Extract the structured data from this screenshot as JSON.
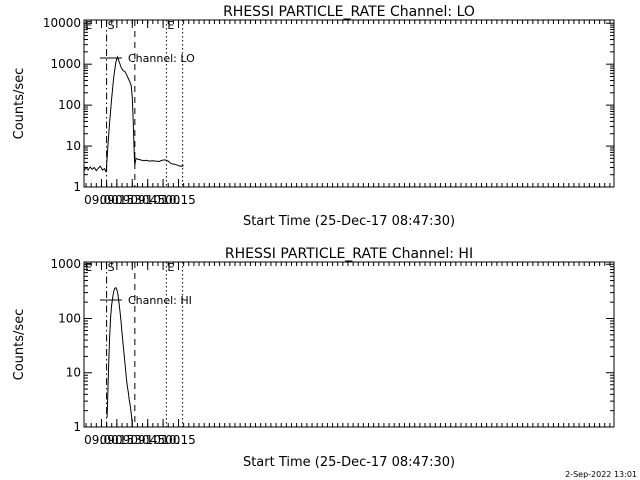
{
  "footer": {
    "timestamp": "2-Sep-2022 13:01"
  },
  "chart_data": [
    {
      "type": "line",
      "title": "RHESSI PARTICLE_RATE Channel: LO",
      "xlabel": "Start Time (25-Dec-17 08:47:30)",
      "ylabel": "Counts/sec",
      "yscale": "log",
      "xlim_minutes": [
        523.0,
        1039.0
      ],
      "ylim": [
        1,
        12000
      ],
      "x_ticks": [
        {
          "m": 540,
          "label": "09:00"
        },
        {
          "m": 555,
          "label": "09:15"
        },
        {
          "m": 570,
          "label": "09:30"
        },
        {
          "m": 585,
          "label": "09:45"
        },
        {
          "m": 600,
          "label": "10:00"
        },
        {
          "m": 615,
          "label": "10:15"
        }
      ],
      "y_ticks": [
        {
          "v": 1,
          "label": "1"
        },
        {
          "v": 10,
          "label": "10"
        },
        {
          "v": 100,
          "label": "100"
        },
        {
          "v": 1000,
          "label": "1000"
        },
        {
          "v": 10000,
          "label": "10000"
        }
      ],
      "markers": [
        {
          "label": "E",
          "m": 523.3,
          "style": "none"
        },
        {
          "label": "S",
          "m": 545.0,
          "style": "dashdot"
        },
        {
          "label": "",
          "m": 572.5,
          "style": "dashed"
        },
        {
          "label": "E",
          "m": 603.2,
          "style": "dotted"
        },
        {
          "label": "",
          "m": 619.0,
          "style": "dotted"
        }
      ],
      "legend": {
        "label": "Channel: LO",
        "position": "top-left"
      },
      "series": [
        {
          "name": "Channel: LO",
          "x": [
            523.0,
            525,
            527,
            529,
            531,
            533,
            535,
            537,
            539,
            541,
            543,
            544.5,
            545.5,
            546.5,
            548,
            550,
            552,
            554,
            555.5,
            557,
            559,
            561,
            563,
            565,
            567,
            569,
            570,
            571,
            571.8,
            572.2,
            572.6,
            573.5,
            575,
            578,
            581,
            584,
            587,
            590,
            593,
            596,
            599,
            602,
            605,
            608,
            611,
            614,
            617,
            620
          ],
          "y": [
            2.5,
            3.0,
            2.6,
            3.1,
            2.7,
            3.0,
            2.5,
            2.9,
            3.2,
            2.6,
            2.8,
            2.3,
            5.0,
            12,
            40,
            150,
            500,
            1100,
            1500,
            1200,
            850,
            700,
            650,
            520,
            400,
            300,
            150,
            35,
            8,
            4.5,
            3.5,
            5.0,
            4.8,
            4.6,
            4.4,
            4.5,
            4.3,
            4.4,
            4.3,
            4.2,
            4.5,
            4.6,
            4.3,
            3.7,
            3.6,
            3.4,
            3.2,
            3.3
          ]
        }
      ]
    },
    {
      "type": "line",
      "title": "RHESSI PARTICLE_RATE Channel: HI",
      "xlabel": "Start Time (25-Dec-17 08:47:30)",
      "ylabel": "Counts/sec",
      "yscale": "log",
      "xlim_minutes": [
        523.0,
        1039.0
      ],
      "ylim": [
        1,
        1100
      ],
      "x_ticks": [
        {
          "m": 540,
          "label": "09:00"
        },
        {
          "m": 555,
          "label": "09:15"
        },
        {
          "m": 570,
          "label": "09:30"
        },
        {
          "m": 585,
          "label": "09:45"
        },
        {
          "m": 600,
          "label": "10:00"
        },
        {
          "m": 615,
          "label": "10:15"
        }
      ],
      "y_ticks": [
        {
          "v": 1,
          "label": "1"
        },
        {
          "v": 10,
          "label": "10"
        },
        {
          "v": 100,
          "label": "100"
        },
        {
          "v": 1000,
          "label": "1000"
        }
      ],
      "markers": [
        {
          "label": "E",
          "m": 523.3,
          "style": "none"
        },
        {
          "label": "S",
          "m": 545.0,
          "style": "dashdot"
        },
        {
          "label": "",
          "m": 572.5,
          "style": "dashed"
        },
        {
          "label": "E",
          "m": 603.2,
          "style": "dotted"
        },
        {
          "label": "",
          "m": 619.0,
          "style": "dotted"
        }
      ],
      "legend": {
        "label": "Channel: HI",
        "position": "top-left"
      },
      "series": [
        {
          "name": "Channel: HI",
          "x": [
            545.5,
            546,
            547,
            548,
            549,
            550,
            551,
            552,
            553,
            554,
            555,
            556,
            557,
            558,
            559,
            560,
            561,
            562,
            563,
            564,
            565,
            566,
            567,
            568,
            569,
            569.5,
            570
          ],
          "y": [
            1.5,
            3.0,
            15,
            50,
            110,
            180,
            250,
            320,
            360,
            370,
            340,
            280,
            200,
            140,
            90,
            55,
            35,
            22,
            14,
            9,
            6,
            4.5,
            3.2,
            2.5,
            1.8,
            1.4,
            1.0
          ]
        }
      ]
    }
  ]
}
